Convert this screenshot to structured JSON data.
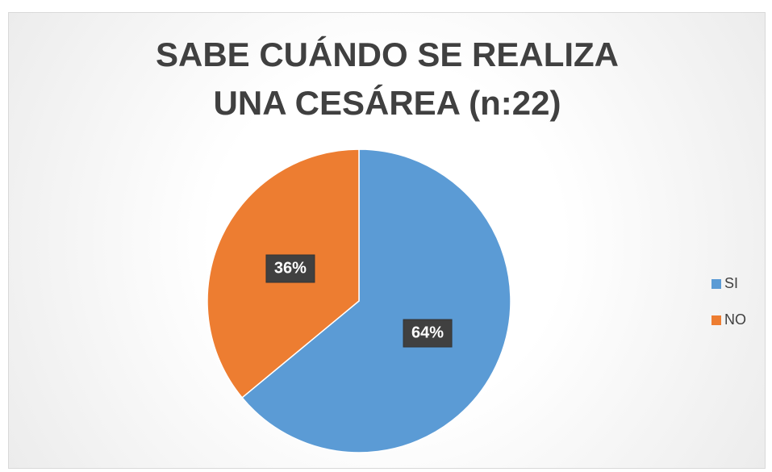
{
  "chart_data": {
    "type": "pie",
    "title": "SABE CUÁNDO SE REALIZA UNA CESÁREA (n:22)",
    "categories": [
      "SI",
      "NO"
    ],
    "values": [
      64,
      36
    ],
    "value_labels": [
      "64%",
      "36%"
    ],
    "colors": [
      "#5b9bd5",
      "#ed7d31"
    ],
    "legend": "right"
  }
}
